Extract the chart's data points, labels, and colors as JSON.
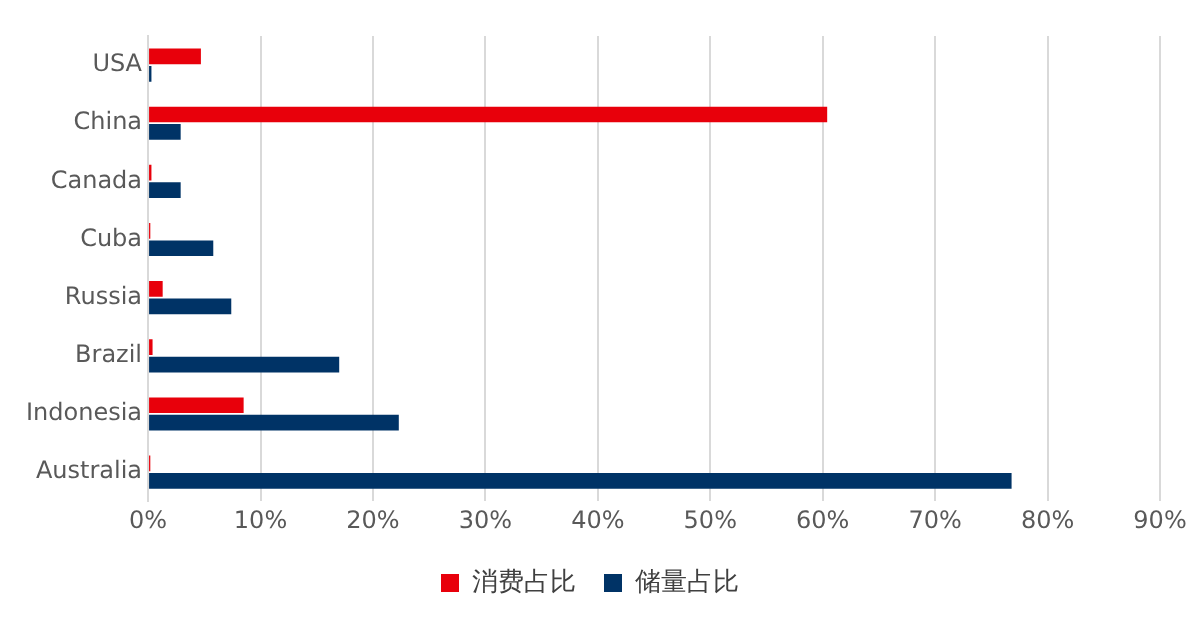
{
  "chart_data": {
    "type": "bar",
    "orientation": "horizontal",
    "categories": [
      "USA",
      "China",
      "Canada",
      "Cuba",
      "Russia",
      "Brazil",
      "Indonesia",
      "Australia"
    ],
    "series": [
      {
        "name": "消费占比",
        "color": "#e8000b",
        "values": [
          4.7,
          60.4,
          0.3,
          0.2,
          1.3,
          0.4,
          8.5,
          0.2
        ]
      },
      {
        "name": "储量占比",
        "color": "#003366",
        "values": [
          0.3,
          2.9,
          2.9,
          5.8,
          7.4,
          17.0,
          22.3,
          76.8
        ]
      }
    ],
    "xlim": [
      0,
      90
    ],
    "xticks": [
      {
        "value": 0,
        "label": "0%"
      },
      {
        "value": 10,
        "label": "10%"
      },
      {
        "value": 20,
        "label": "20%"
      },
      {
        "value": 30,
        "label": "30%"
      },
      {
        "value": 40,
        "label": "40%"
      },
      {
        "value": 50,
        "label": "50%"
      },
      {
        "value": 60,
        "label": "60%"
      },
      {
        "value": 70,
        "label": "70%"
      },
      {
        "value": 80,
        "label": "80%"
      },
      {
        "value": 90,
        "label": "90%"
      }
    ],
    "grid": "x",
    "legend": "bottom"
  }
}
